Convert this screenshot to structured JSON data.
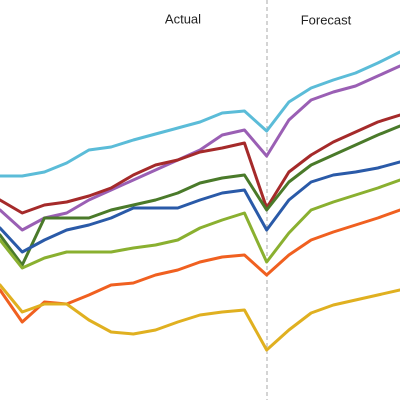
{
  "chart_data": {
    "type": "line",
    "annotations": [
      "Actual",
      "Forecast"
    ],
    "categories": [
      null,
      null,
      null,
      null,
      null,
      null,
      null,
      null,
      null,
      null,
      null,
      null,
      null,
      null,
      null,
      null,
      null,
      null,
      null
    ],
    "ylim": [
      0,
      400
    ],
    "series": [
      {
        "color": "#5bbcd8",
        "values": [
          224,
          224,
          228,
          237,
          250,
          253,
          260,
          266,
          272,
          278,
          287,
          289,
          269,
          298,
          312,
          320,
          327,
          337,
          348
        ]
      },
      {
        "color": "#9a5fb4",
        "values": [
          190,
          170,
          182,
          187,
          200,
          210,
          220,
          230,
          240,
          250,
          265,
          270,
          244,
          280,
          300,
          308,
          314,
          324,
          334
        ]
      },
      {
        "color": "#a52a2a",
        "values": [
          200,
          187,
          195,
          198,
          204,
          212,
          225,
          235,
          240,
          248,
          252,
          257,
          192,
          228,
          245,
          258,
          268,
          278,
          285
        ]
      },
      {
        "color": "#4a7a2a",
        "values": [
          165,
          135,
          182,
          182,
          182,
          190,
          195,
          200,
          207,
          217,
          222,
          225,
          190,
          218,
          235,
          245,
          255,
          265,
          274
        ]
      },
      {
        "color": "#2a5aa8",
        "values": [
          172,
          148,
          160,
          170,
          175,
          182,
          192,
          192,
          192,
          200,
          207,
          210,
          170,
          200,
          218,
          225,
          228,
          232,
          238
        ]
      },
      {
        "color": "#8ab030",
        "values": [
          160,
          132,
          142,
          148,
          148,
          148,
          152,
          155,
          160,
          172,
          180,
          187,
          138,
          167,
          190,
          198,
          205,
          212,
          220
        ]
      },
      {
        "color": "#f06020",
        "values": [
          110,
          78,
          98,
          96,
          105,
          115,
          117,
          125,
          130,
          138,
          143,
          145,
          125,
          145,
          160,
          168,
          175,
          182,
          190
        ]
      },
      {
        "color": "#e0b020",
        "values": [
          115,
          88,
          96,
          96,
          80,
          68,
          66,
          70,
          78,
          85,
          88,
          90,
          50,
          70,
          87,
          95,
          100,
          105,
          110
        ]
      }
    ]
  }
}
